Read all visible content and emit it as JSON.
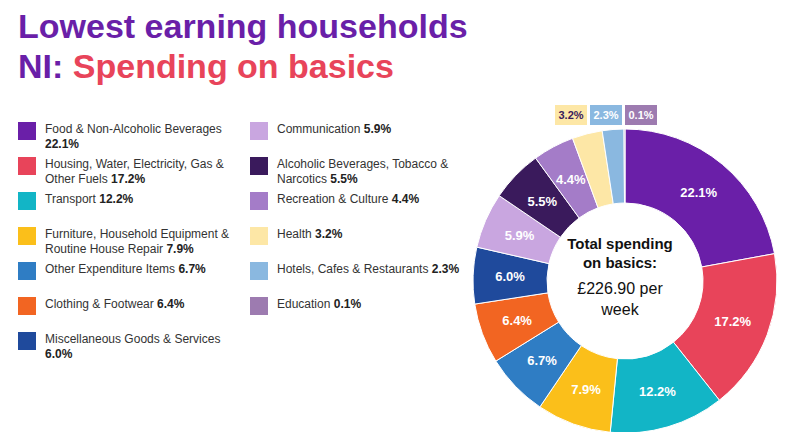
{
  "chart_data": {
    "type": "pie",
    "title": "Lowest earning households",
    "subtitle": "NI: Spending on basics",
    "annotations": [
      "Total spending on basics:",
      "£226.90 per week"
    ],
    "categories": [
      "Food & Non-Alcoholic Beverages",
      "Housing, Water, Electricity, Gas & Other Fuels",
      "Transport",
      "Furniture, Household Equipment & Routine House Repair",
      "Other Expenditure Items",
      "Clothing & Footwear",
      "Miscellaneous Goods & Services",
      "Communication",
      "Alcoholic Beverages, Tobacco & Narcotics",
      "Recreation & Culture",
      "Health",
      "Hotels, Cafes & Restaurants",
      "Education"
    ],
    "values": [
      22.1,
      17.2,
      12.2,
      7.9,
      6.7,
      6.4,
      6.0,
      5.9,
      5.5,
      4.4,
      3.2,
      2.3,
      0.1
    ],
    "value_labels": [
      "22.1%",
      "17.2%",
      "12.2%",
      "7.9%",
      "6.7%",
      "6.4%",
      "6.0%",
      "5.9%",
      "5.5%",
      "4.4%",
      "3.2%",
      "2.3%",
      "0.1%"
    ],
    "colors": [
      "#6a1fa8",
      "#e8445a",
      "#12b5c6",
      "#fbbf1a",
      "#2f7dc4",
      "#f26522",
      "#1f4a9c",
      "#c9a6e0",
      "#3a1a5c",
      "#a47cc8",
      "#fde7a6",
      "#8ab8e0",
      "#9d7bb0"
    ],
    "data_labels": true,
    "legend": "left"
  }
}
